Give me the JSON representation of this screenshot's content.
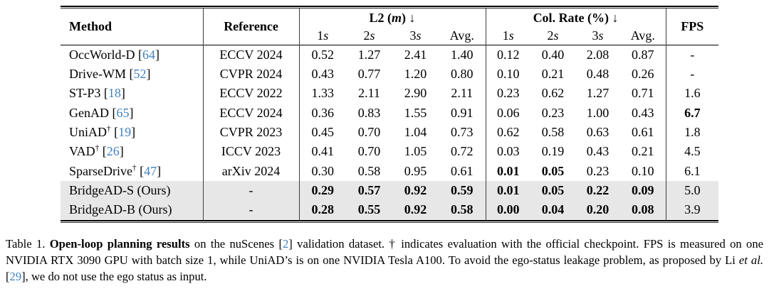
{
  "colors": {
    "cite": "#4181C1",
    "highlight": "#e7e7e7"
  },
  "table": {
    "header": {
      "method": "Method",
      "reference": "Reference",
      "groups": [
        {
          "label": "L2",
          "unit": "m",
          "unit_italic": true,
          "arrow": "↓"
        },
        {
          "label": "Col. Rate",
          "unit": "%",
          "unit_italic": false,
          "arrow": "↓"
        }
      ],
      "sub_labels": [
        "1s",
        "2s",
        "3s",
        "Avg."
      ],
      "fps": "FPS"
    },
    "rows": [
      {
        "method": "OccWorld-D",
        "dagger": false,
        "cite": "64",
        "reference": "ECCV 2024",
        "l2": [
          "0.52",
          "1.27",
          "2.41",
          "1.40"
        ],
        "l2_bold": [
          false,
          false,
          false,
          false
        ],
        "col_rate": [
          "0.12",
          "0.40",
          "2.08",
          "0.87"
        ],
        "col_rate_bold": [
          false,
          false,
          false,
          false
        ],
        "fps": "-",
        "fps_bold": false,
        "highlight": false
      },
      {
        "method": "Drive-WM",
        "dagger": false,
        "cite": "52",
        "reference": "CVPR 2024",
        "l2": [
          "0.43",
          "0.77",
          "1.20",
          "0.80"
        ],
        "l2_bold": [
          false,
          false,
          false,
          false
        ],
        "col_rate": [
          "0.10",
          "0.21",
          "0.48",
          "0.26"
        ],
        "col_rate_bold": [
          false,
          false,
          false,
          false
        ],
        "fps": "-",
        "fps_bold": false,
        "highlight": false
      },
      {
        "method": "ST-P3",
        "dagger": false,
        "cite": "18",
        "reference": "ECCV 2022",
        "l2": [
          "1.33",
          "2.11",
          "2.90",
          "2.11"
        ],
        "l2_bold": [
          false,
          false,
          false,
          false
        ],
        "col_rate": [
          "0.23",
          "0.62",
          "1.27",
          "0.71"
        ],
        "col_rate_bold": [
          false,
          false,
          false,
          false
        ],
        "fps": "1.6",
        "fps_bold": false,
        "highlight": false
      },
      {
        "method": "GenAD",
        "dagger": false,
        "cite": "65",
        "reference": "ECCV 2024",
        "l2": [
          "0.36",
          "0.83",
          "1.55",
          "0.91"
        ],
        "l2_bold": [
          false,
          false,
          false,
          false
        ],
        "col_rate": [
          "0.06",
          "0.23",
          "1.00",
          "0.43"
        ],
        "col_rate_bold": [
          false,
          false,
          false,
          false
        ],
        "fps": "6.7",
        "fps_bold": true,
        "highlight": false
      },
      {
        "method": "UniAD",
        "dagger": true,
        "cite": "19",
        "reference": "CVPR 2023",
        "l2": [
          "0.45",
          "0.70",
          "1.04",
          "0.73"
        ],
        "l2_bold": [
          false,
          false,
          false,
          false
        ],
        "col_rate": [
          "0.62",
          "0.58",
          "0.63",
          "0.61"
        ],
        "col_rate_bold": [
          false,
          false,
          false,
          false
        ],
        "fps": "1.8",
        "fps_bold": false,
        "highlight": false
      },
      {
        "method": "VAD",
        "dagger": true,
        "cite": "26",
        "reference": "ICCV 2023",
        "l2": [
          "0.41",
          "0.70",
          "1.05",
          "0.72"
        ],
        "l2_bold": [
          false,
          false,
          false,
          false
        ],
        "col_rate": [
          "0.03",
          "0.19",
          "0.43",
          "0.21"
        ],
        "col_rate_bold": [
          false,
          false,
          false,
          false
        ],
        "fps": "4.5",
        "fps_bold": false,
        "highlight": false
      },
      {
        "method": "SparseDrive",
        "dagger": true,
        "cite": "47",
        "reference": "arXiv 2024",
        "l2": [
          "0.30",
          "0.58",
          "0.95",
          "0.61"
        ],
        "l2_bold": [
          false,
          false,
          false,
          false
        ],
        "col_rate": [
          "0.01",
          "0.05",
          "0.23",
          "0.10"
        ],
        "col_rate_bold": [
          true,
          true,
          false,
          false
        ],
        "fps": "6.1",
        "fps_bold": false,
        "highlight": false
      },
      {
        "method": "BridgeAD-S (Ours)",
        "dagger": false,
        "cite": null,
        "reference": "-",
        "l2": [
          "0.29",
          "0.57",
          "0.92",
          "0.59"
        ],
        "l2_bold": [
          true,
          true,
          true,
          true
        ],
        "col_rate": [
          "0.01",
          "0.05",
          "0.22",
          "0.09"
        ],
        "col_rate_bold": [
          true,
          true,
          true,
          true
        ],
        "fps": "5.0",
        "fps_bold": false,
        "highlight": true
      },
      {
        "method": "BridgeAD-B (Ours)",
        "dagger": false,
        "cite": null,
        "reference": "-",
        "l2": [
          "0.28",
          "0.55",
          "0.92",
          "0.58"
        ],
        "l2_bold": [
          true,
          true,
          true,
          true
        ],
        "col_rate": [
          "0.00",
          "0.04",
          "0.20",
          "0.08"
        ],
        "col_rate_bold": [
          true,
          true,
          true,
          true
        ],
        "fps": "3.9",
        "fps_bold": false,
        "highlight": true
      }
    ]
  },
  "caption": {
    "segments": [
      {
        "text": "Table 1.  ",
        "style": "normal"
      },
      {
        "text": "Open-loop planning results",
        "style": "bold"
      },
      {
        "text": " on the nuScenes [",
        "style": "normal"
      },
      {
        "text": "2",
        "style": "cite"
      },
      {
        "text": "] validation dataset.  † indicates evaluation with the official checkpoint.  FPS is measured on one NVIDIA RTX 3090 GPU with batch size 1, while UniAD’s is on one NVIDIA Tesla A100.  To avoid the ego-status leakage problem, as proposed by Li ",
        "style": "normal"
      },
      {
        "text": "et al.",
        "style": "italic"
      },
      {
        "text": " [",
        "style": "normal"
      },
      {
        "text": "29",
        "style": "cite"
      },
      {
        "text": "], we do not use the ego status as input.",
        "style": "normal"
      }
    ]
  }
}
